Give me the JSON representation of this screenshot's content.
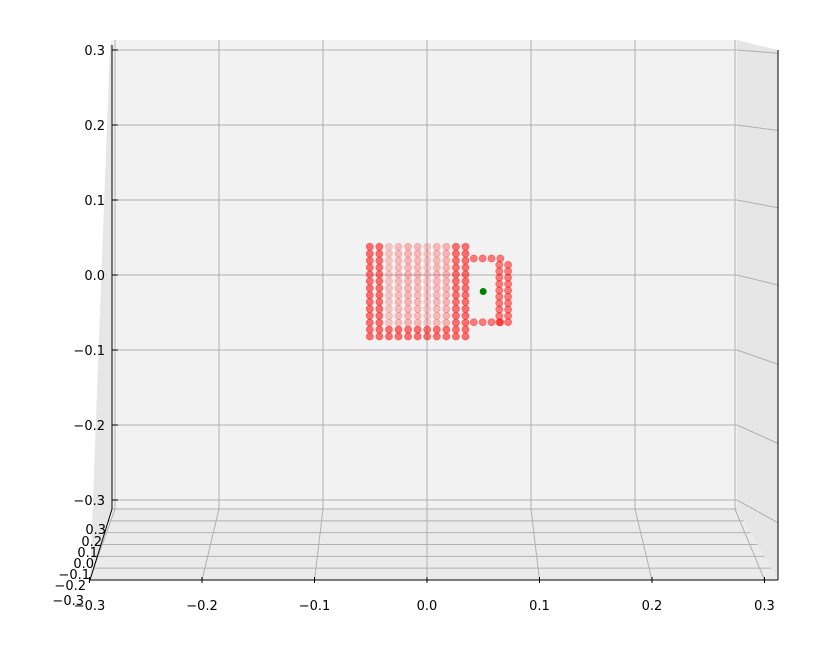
{
  "chart_data": {
    "type": "scatter",
    "title": "",
    "xlabel": "",
    "ylabel": "",
    "zlabel": "",
    "grid": true,
    "colors": {
      "points": "#ff0000",
      "marker": "#008000",
      "pane": "#f2f2f2",
      "grid": "#b0b0b0"
    },
    "z_ticks": [
      "0.3",
      "0.2",
      "0.1",
      "0.0",
      "−0.1",
      "−0.2",
      "−0.3"
    ],
    "x_ticks": [
      "−0.3",
      "−0.2",
      "−0.1",
      "0.0",
      "0.1",
      "0.2",
      "0.3"
    ],
    "y_ticks": [
      "0.3",
      "0.2",
      "0.1",
      "0.0",
      "−0.1",
      "−0.2",
      "−0.3"
    ],
    "xlim": [
      -0.3,
      0.3
    ],
    "zlim": [
      -0.3,
      0.3
    ],
    "mug_body": {
      "x_min": -0.055,
      "x_max": 0.038,
      "z_min": -0.082,
      "z_max": 0.04,
      "step": 0.0092
    },
    "mug_handle": {
      "x_min": 0.045,
      "x_max": 0.078,
      "z_min": -0.063,
      "z_max": 0.022
    },
    "marker_point": {
      "x": 0.054,
      "z": -0.022
    }
  }
}
